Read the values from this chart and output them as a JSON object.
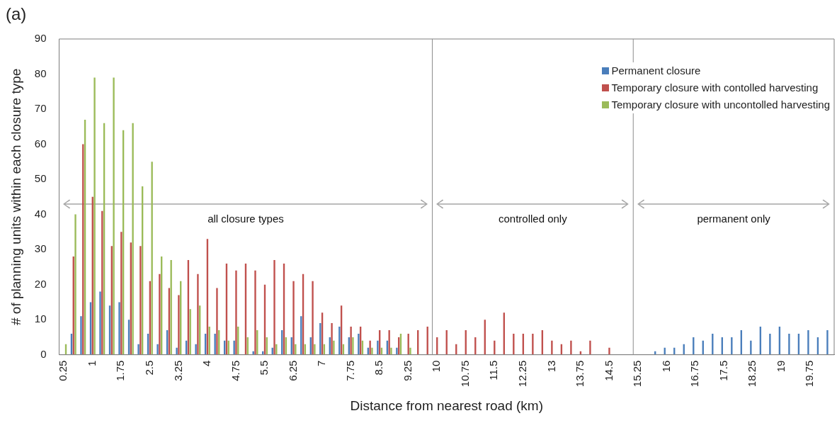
{
  "chart_data": {
    "type": "bar",
    "title": "(a)",
    "xlabel": "Distance from nearest road (km)",
    "ylabel": "# of planning units within each closure type",
    "x": [
      0.25,
      0.5,
      0.75,
      1,
      1.25,
      1.5,
      1.75,
      2,
      2.25,
      2.5,
      2.75,
      3,
      3.25,
      3.5,
      3.75,
      4,
      4.25,
      4.5,
      4.75,
      5,
      5.25,
      5.5,
      5.75,
      6,
      6.25,
      6.5,
      6.75,
      7,
      7.25,
      7.5,
      7.75,
      8,
      8.25,
      8.5,
      8.75,
      9,
      9.25,
      9.5,
      9.75,
      10,
      10.25,
      10.5,
      10.75,
      11,
      11.25,
      11.5,
      11.75,
      12,
      12.25,
      12.5,
      12.75,
      13,
      13.25,
      13.5,
      13.75,
      14,
      14.25,
      14.5,
      14.75,
      15,
      15.25,
      15.5,
      15.75,
      16,
      16.25,
      16.5,
      16.75,
      17,
      17.25,
      17.5,
      17.75,
      18,
      18.25,
      18.5,
      18.75,
      19,
      19.25,
      19.5,
      19.75,
      20,
      20.25
    ],
    "series": [
      {
        "name": "Permanent closure",
        "color": "#4a7ebb",
        "values": [
          0,
          6,
          11,
          15,
          18,
          14,
          15,
          10,
          3,
          6,
          3,
          7,
          2,
          4,
          3,
          6,
          6,
          4,
          4,
          0,
          1,
          1,
          2,
          7,
          5,
          11,
          5,
          9,
          5,
          8,
          5,
          6,
          2,
          4,
          4,
          2,
          0,
          0,
          0,
          0,
          0,
          0,
          0,
          0,
          0,
          0,
          0,
          0,
          0,
          0,
          0,
          0,
          0,
          0,
          0,
          0,
          0,
          0,
          0,
          0,
          0,
          0,
          1,
          2,
          2,
          3,
          5,
          4,
          6,
          5,
          5,
          7,
          4,
          8,
          6,
          8,
          6,
          6,
          7,
          5,
          7
        ]
      },
      {
        "name": "Temporary closure with contolled harvesting",
        "color": "#c0504d",
        "values": [
          0,
          28,
          60,
          45,
          41,
          31,
          35,
          32,
          31,
          21,
          23,
          19,
          17,
          27,
          23,
          33,
          19,
          26,
          24,
          26,
          24,
          20,
          27,
          26,
          21,
          23,
          21,
          12,
          9,
          14,
          8,
          8,
          4,
          7,
          7,
          5,
          6,
          7,
          8,
          5,
          7,
          3,
          7,
          5,
          10,
          4,
          12,
          6,
          6,
          6,
          7,
          4,
          3,
          4,
          1,
          4,
          0,
          2,
          0,
          0,
          0,
          0,
          0,
          0,
          0,
          0,
          0,
          0,
          0,
          0,
          0,
          0,
          0,
          0,
          0,
          0,
          0,
          0,
          0,
          0,
          0
        ]
      },
      {
        "name": "Temporary closure with uncontolled harvesting",
        "color": "#9bbb59",
        "values": [
          3,
          40,
          67,
          79,
          66,
          79,
          64,
          66,
          48,
          55,
          28,
          27,
          21,
          13,
          14,
          8,
          7,
          4,
          8,
          5,
          7,
          5,
          3,
          5,
          3,
          3,
          3,
          3,
          4,
          3,
          5,
          4,
          2,
          2,
          2,
          6,
          2,
          0,
          0,
          0,
          0,
          0,
          0,
          0,
          0,
          0,
          0,
          0,
          0,
          0,
          0,
          0,
          0,
          0,
          0,
          0,
          0,
          0,
          0,
          0,
          0,
          0,
          0,
          0,
          0,
          0,
          0,
          0,
          0,
          0,
          0,
          0,
          0,
          0,
          0,
          0,
          0,
          0,
          0,
          0,
          0
        ]
      }
    ],
    "xlim": [
      0.125,
      20.375
    ],
    "xticks": [
      0.25,
      1,
      1.75,
      2.5,
      3.25,
      4,
      4.75,
      5.5,
      6.25,
      7,
      7.75,
      8.5,
      9.25,
      10,
      10.75,
      11.5,
      12.25,
      13,
      13.75,
      14.5,
      15.25,
      16,
      16.75,
      17.5,
      18.25,
      19,
      19.75
    ],
    "ylim": [
      0,
      90
    ],
    "yticks": [
      0,
      10,
      20,
      30,
      40,
      50,
      60,
      70,
      80,
      90
    ],
    "grid": false,
    "legend": "top right",
    "ref_lines": [
      {
        "axis": "x",
        "value": 9.875,
        "color": "#8c8c8c"
      },
      {
        "axis": "x",
        "value": 15.125,
        "color": "#8c8c8c"
      }
    ],
    "annotations": [
      "all closure types",
      "controlled only",
      "permanent only"
    ]
  }
}
